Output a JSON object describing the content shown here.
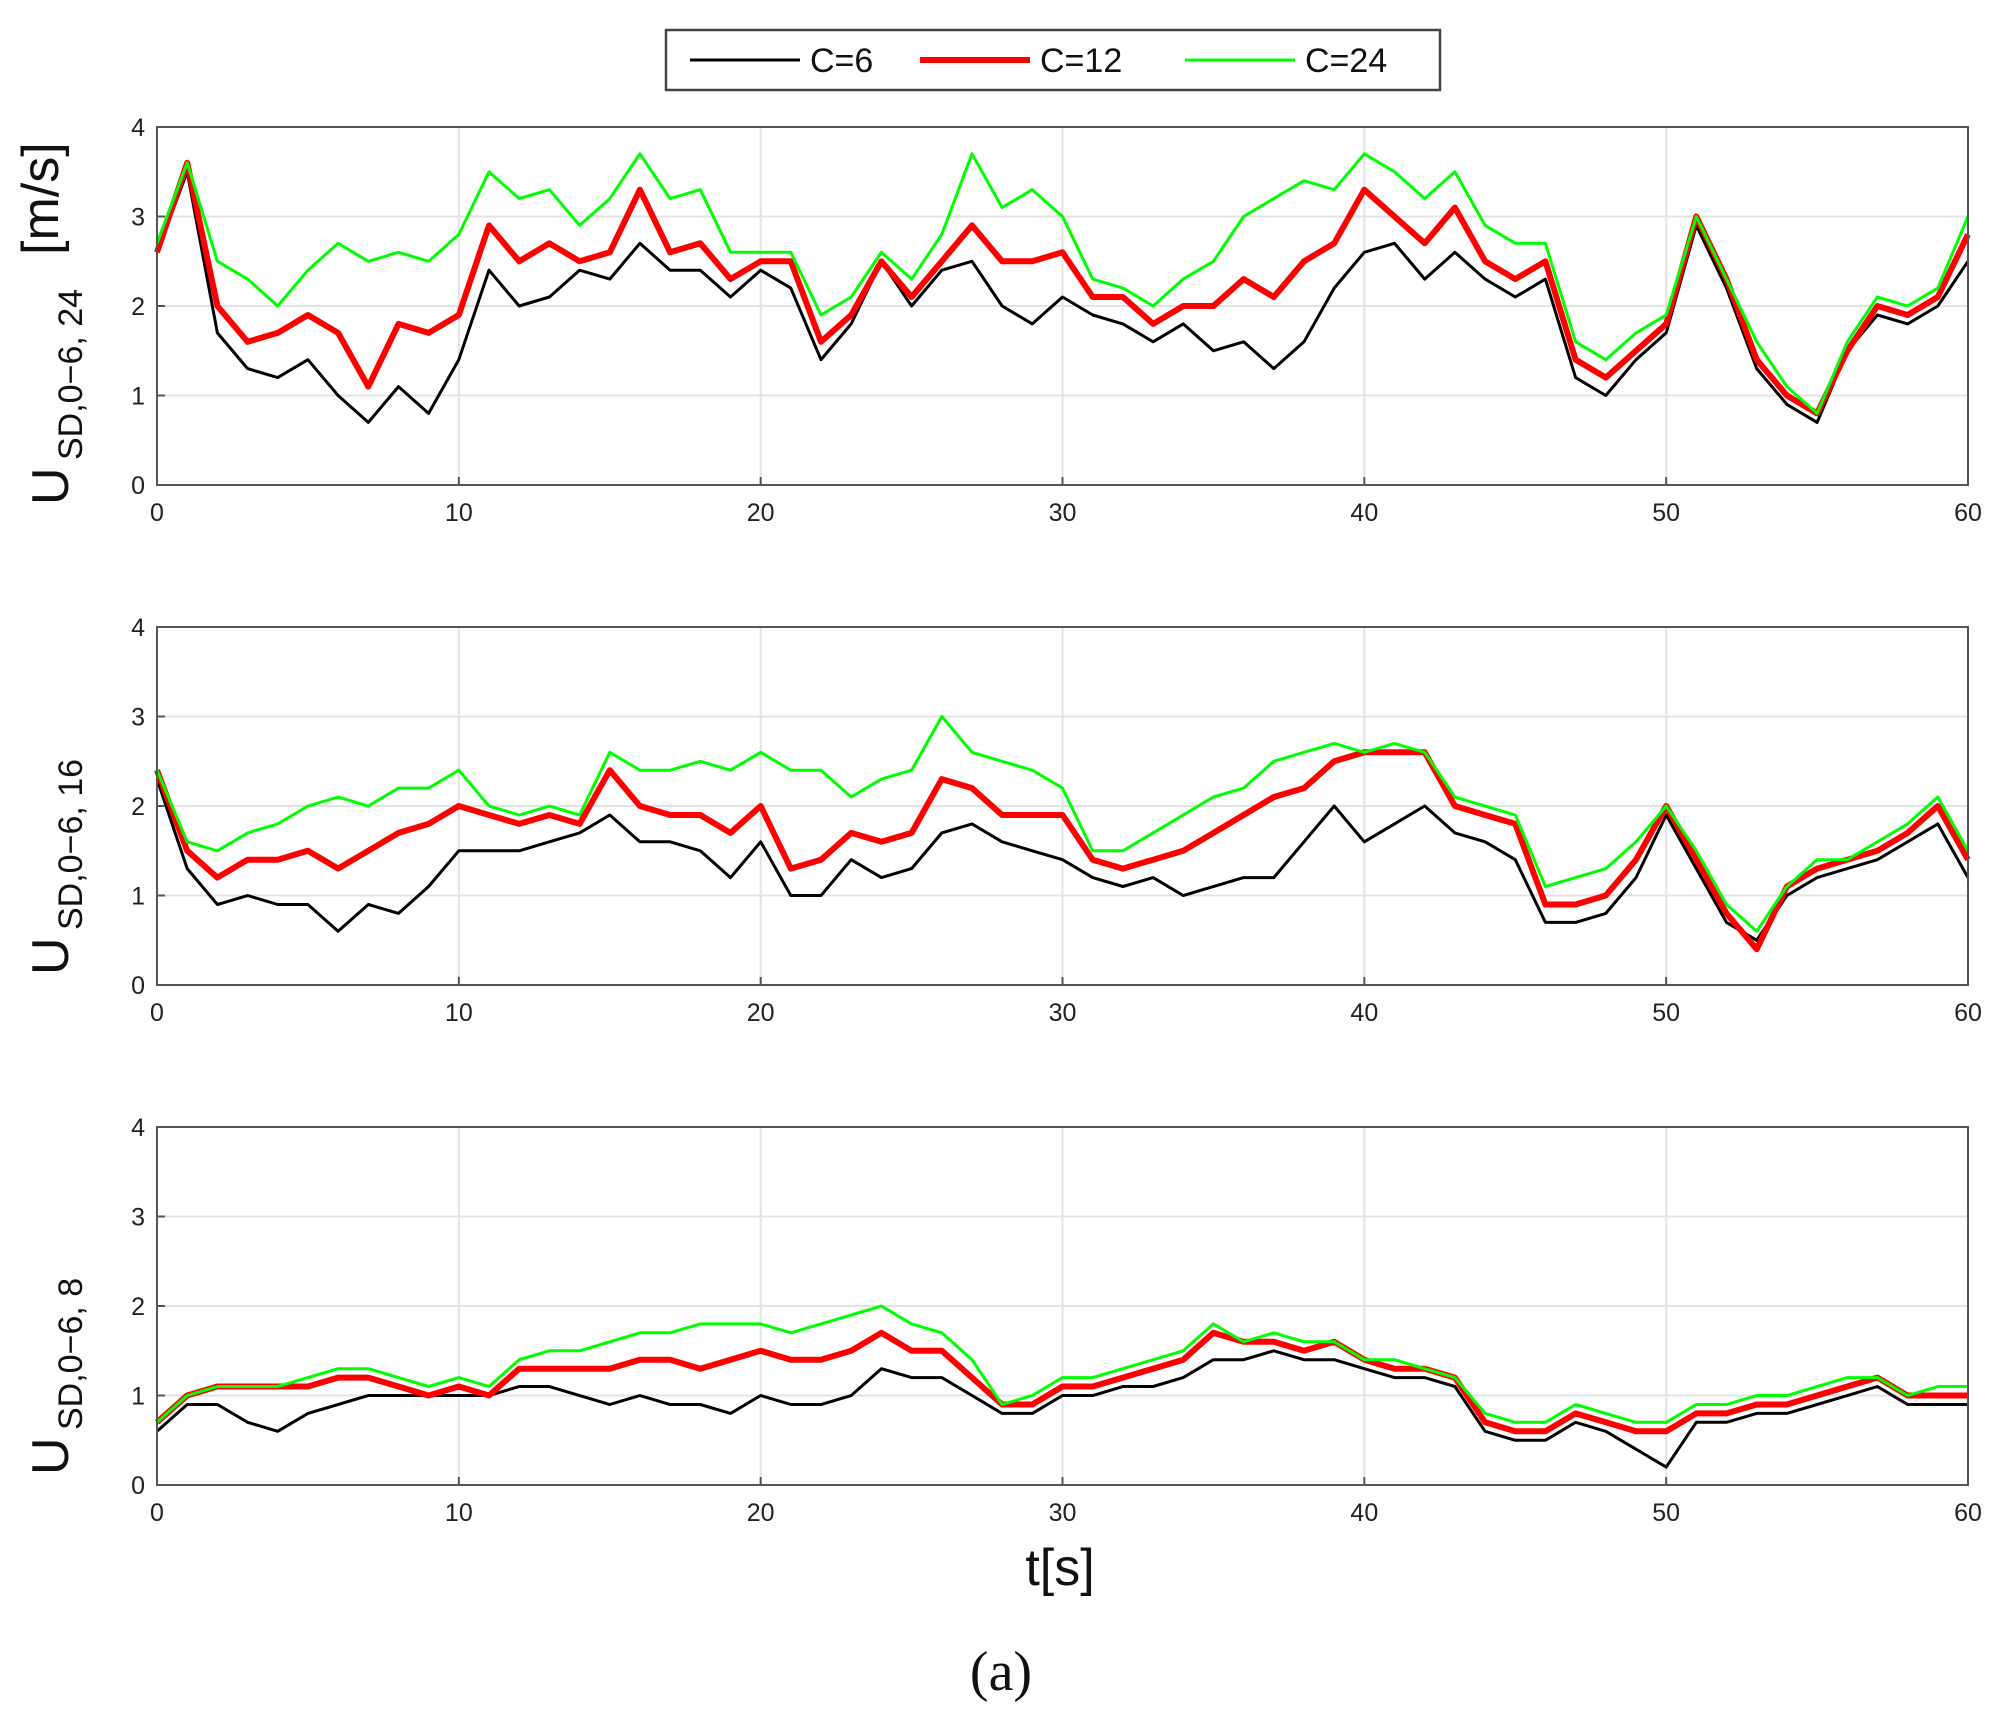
{
  "legend": {
    "entries": [
      {
        "label": "C=6",
        "color": "#000000"
      },
      {
        "label": "C=12",
        "color": "#ff0000"
      },
      {
        "label": "C=24",
        "color": "#00ff00"
      }
    ]
  },
  "caption": "(a)",
  "chart_data": [
    {
      "type": "line",
      "ylabel_main": "U",
      "ylabel_sub": "SD,0−6, 24",
      "yunit": "[m/s]",
      "xlabel": "",
      "xlim": [
        0,
        60
      ],
      "ylim": [
        0,
        4
      ],
      "xticks": [
        "0",
        "10",
        "20",
        "30",
        "40",
        "50",
        "60"
      ],
      "yticks": [
        "0",
        "1",
        "2",
        "3",
        "4"
      ],
      "grid": true,
      "x": [
        0,
        1,
        2,
        3,
        4,
        5,
        6,
        7,
        8,
        9,
        10,
        11,
        12,
        13,
        14,
        15,
        16,
        17,
        18,
        19,
        20,
        21,
        22,
        23,
        24,
        25,
        26,
        27,
        28,
        29,
        30,
        31,
        32,
        33,
        34,
        35,
        36,
        37,
        38,
        39,
        40,
        41,
        42,
        43,
        44,
        45,
        46,
        47,
        48,
        49,
        50,
        51,
        52,
        53,
        54,
        55,
        56,
        57,
        58,
        59,
        60
      ],
      "series": [
        {
          "name": "C=6",
          "values": [
            2.6,
            3.5,
            1.7,
            1.3,
            1.2,
            1.4,
            1.0,
            0.7,
            1.1,
            0.8,
            1.4,
            2.4,
            2.0,
            2.1,
            2.4,
            2.3,
            2.7,
            2.4,
            2.4,
            2.1,
            2.4,
            2.2,
            1.4,
            1.8,
            2.5,
            2.0,
            2.4,
            2.5,
            2.0,
            1.8,
            2.1,
            1.9,
            1.8,
            1.6,
            1.8,
            1.5,
            1.6,
            1.3,
            1.6,
            2.2,
            2.6,
            2.7,
            2.3,
            2.6,
            2.3,
            2.1,
            2.3,
            1.2,
            1.0,
            1.4,
            1.7,
            2.9,
            2.2,
            1.3,
            0.9,
            0.7,
            1.5,
            1.9,
            1.8,
            2.0,
            2.5
          ]
        },
        {
          "name": "C=12",
          "values": [
            2.6,
            3.6,
            2.0,
            1.6,
            1.7,
            1.9,
            1.7,
            1.1,
            1.8,
            1.7,
            1.9,
            2.9,
            2.5,
            2.7,
            2.5,
            2.6,
            3.3,
            2.6,
            2.7,
            2.3,
            2.5,
            2.5,
            1.6,
            1.9,
            2.5,
            2.1,
            2.5,
            2.9,
            2.5,
            2.5,
            2.6,
            2.1,
            2.1,
            1.8,
            2.0,
            2.0,
            2.3,
            2.1,
            2.5,
            2.7,
            3.3,
            3.0,
            2.7,
            3.1,
            2.5,
            2.3,
            2.5,
            1.4,
            1.2,
            1.5,
            1.8,
            3.0,
            2.3,
            1.4,
            1.0,
            0.8,
            1.5,
            2.0,
            1.9,
            2.1,
            2.8
          ]
        },
        {
          "name": "C=24",
          "values": [
            2.7,
            3.6,
            2.5,
            2.3,
            2.0,
            2.4,
            2.7,
            2.5,
            2.6,
            2.5,
            2.8,
            3.5,
            3.2,
            3.3,
            2.9,
            3.2,
            3.7,
            3.2,
            3.3,
            2.6,
            2.6,
            2.6,
            1.9,
            2.1,
            2.6,
            2.3,
            2.8,
            3.7,
            3.1,
            3.3,
            3.0,
            2.3,
            2.2,
            2.0,
            2.3,
            2.5,
            3.0,
            3.2,
            3.4,
            3.3,
            3.7,
            3.5,
            3.2,
            3.5,
            2.9,
            2.7,
            2.7,
            1.6,
            1.4,
            1.7,
            1.9,
            3.0,
            2.3,
            1.6,
            1.1,
            0.8,
            1.6,
            2.1,
            2.0,
            2.2,
            3.0
          ]
        }
      ]
    },
    {
      "type": "line",
      "ylabel_main": "U",
      "ylabel_sub": "SD,0−6, 16",
      "yunit": "",
      "xlabel": "",
      "xlim": [
        0,
        60
      ],
      "ylim": [
        0,
        4
      ],
      "xticks": [
        "0",
        "10",
        "20",
        "30",
        "40",
        "50",
        "60"
      ],
      "yticks": [
        "0",
        "1",
        "2",
        "3",
        "4"
      ],
      "grid": true,
      "x": [
        0,
        1,
        2,
        3,
        4,
        5,
        6,
        7,
        8,
        9,
        10,
        11,
        12,
        13,
        14,
        15,
        16,
        17,
        18,
        19,
        20,
        21,
        22,
        23,
        24,
        25,
        26,
        27,
        28,
        29,
        30,
        31,
        32,
        33,
        34,
        35,
        36,
        37,
        38,
        39,
        40,
        41,
        42,
        43,
        44,
        45,
        46,
        47,
        48,
        49,
        50,
        51,
        52,
        53,
        54,
        55,
        56,
        57,
        58,
        59,
        60
      ],
      "series": [
        {
          "name": "C=6",
          "values": [
            2.3,
            1.3,
            0.9,
            1.0,
            0.9,
            0.9,
            0.6,
            0.9,
            0.8,
            1.1,
            1.5,
            1.5,
            1.5,
            1.6,
            1.7,
            1.9,
            1.6,
            1.6,
            1.5,
            1.2,
            1.6,
            1.0,
            1.0,
            1.4,
            1.2,
            1.3,
            1.7,
            1.8,
            1.6,
            1.5,
            1.4,
            1.2,
            1.1,
            1.2,
            1.0,
            1.1,
            1.2,
            1.2,
            1.6,
            2.0,
            1.6,
            1.8,
            2.0,
            1.7,
            1.6,
            1.4,
            0.7,
            0.7,
            0.8,
            1.2,
            1.9,
            1.3,
            0.7,
            0.5,
            1.0,
            1.2,
            1.3,
            1.4,
            1.6,
            1.8,
            1.2
          ]
        },
        {
          "name": "C=12",
          "values": [
            2.4,
            1.5,
            1.2,
            1.4,
            1.4,
            1.5,
            1.3,
            1.5,
            1.7,
            1.8,
            2.0,
            1.9,
            1.8,
            1.9,
            1.8,
            2.4,
            2.0,
            1.9,
            1.9,
            1.7,
            2.0,
            1.3,
            1.4,
            1.7,
            1.6,
            1.7,
            2.3,
            2.2,
            1.9,
            1.9,
            1.9,
            1.4,
            1.3,
            1.4,
            1.5,
            1.7,
            1.9,
            2.1,
            2.2,
            2.5,
            2.6,
            2.6,
            2.6,
            2.0,
            1.9,
            1.8,
            0.9,
            0.9,
            1.0,
            1.4,
            2.0,
            1.4,
            0.8,
            0.4,
            1.1,
            1.3,
            1.4,
            1.5,
            1.7,
            2.0,
            1.4
          ]
        },
        {
          "name": "C=24",
          "values": [
            2.4,
            1.6,
            1.5,
            1.7,
            1.8,
            2.0,
            2.1,
            2.0,
            2.2,
            2.2,
            2.4,
            2.0,
            1.9,
            2.0,
            1.9,
            2.6,
            2.4,
            2.4,
            2.5,
            2.4,
            2.6,
            2.4,
            2.4,
            2.1,
            2.3,
            2.4,
            3.0,
            2.6,
            2.5,
            2.4,
            2.2,
            1.5,
            1.5,
            1.7,
            1.9,
            2.1,
            2.2,
            2.5,
            2.6,
            2.7,
            2.6,
            2.7,
            2.6,
            2.1,
            2.0,
            1.9,
            1.1,
            1.2,
            1.3,
            1.6,
            2.0,
            1.5,
            0.9,
            0.6,
            1.1,
            1.4,
            1.4,
            1.6,
            1.8,
            2.1,
            1.5
          ]
        }
      ]
    },
    {
      "type": "line",
      "ylabel_main": "U",
      "ylabel_sub": "SD,0−6, 8",
      "yunit": "",
      "xlabel": "t[s]",
      "xlim": [
        0,
        60
      ],
      "ylim": [
        0,
        4
      ],
      "xticks": [
        "0",
        "10",
        "20",
        "30",
        "40",
        "50",
        "60"
      ],
      "yticks": [
        "0",
        "1",
        "2",
        "3",
        "4"
      ],
      "grid": true,
      "x": [
        0,
        1,
        2,
        3,
        4,
        5,
        6,
        7,
        8,
        9,
        10,
        11,
        12,
        13,
        14,
        15,
        16,
        17,
        18,
        19,
        20,
        21,
        22,
        23,
        24,
        25,
        26,
        27,
        28,
        29,
        30,
        31,
        32,
        33,
        34,
        35,
        36,
        37,
        38,
        39,
        40,
        41,
        42,
        43,
        44,
        45,
        46,
        47,
        48,
        49,
        50,
        51,
        52,
        53,
        54,
        55,
        56,
        57,
        58,
        59,
        60
      ],
      "series": [
        {
          "name": "C=6",
          "values": [
            0.6,
            0.9,
            0.9,
            0.7,
            0.6,
            0.8,
            0.9,
            1.0,
            1.0,
            1.0,
            1.0,
            1.0,
            1.1,
            1.1,
            1.0,
            0.9,
            1.0,
            0.9,
            0.9,
            0.8,
            1.0,
            0.9,
            0.9,
            1.0,
            1.3,
            1.2,
            1.2,
            1.0,
            0.8,
            0.8,
            1.0,
            1.0,
            1.1,
            1.1,
            1.2,
            1.4,
            1.4,
            1.5,
            1.4,
            1.4,
            1.3,
            1.2,
            1.2,
            1.1,
            0.6,
            0.5,
            0.5,
            0.7,
            0.6,
            0.4,
            0.2,
            0.7,
            0.7,
            0.8,
            0.8,
            0.9,
            1.0,
            1.1,
            0.9,
            0.9,
            0.9
          ]
        },
        {
          "name": "C=12",
          "values": [
            0.7,
            1.0,
            1.1,
            1.1,
            1.1,
            1.1,
            1.2,
            1.2,
            1.1,
            1.0,
            1.1,
            1.0,
            1.3,
            1.3,
            1.3,
            1.3,
            1.4,
            1.4,
            1.3,
            1.4,
            1.5,
            1.4,
            1.4,
            1.5,
            1.7,
            1.5,
            1.5,
            1.2,
            0.9,
            0.9,
            1.1,
            1.1,
            1.2,
            1.3,
            1.4,
            1.7,
            1.6,
            1.6,
            1.5,
            1.6,
            1.4,
            1.3,
            1.3,
            1.2,
            0.7,
            0.6,
            0.6,
            0.8,
            0.7,
            0.6,
            0.6,
            0.8,
            0.8,
            0.9,
            0.9,
            1.0,
            1.1,
            1.2,
            1.0,
            1.0,
            1.0
          ]
        },
        {
          "name": "C=24",
          "values": [
            0.7,
            1.0,
            1.1,
            1.1,
            1.1,
            1.2,
            1.3,
            1.3,
            1.2,
            1.1,
            1.2,
            1.1,
            1.4,
            1.5,
            1.5,
            1.6,
            1.7,
            1.7,
            1.8,
            1.8,
            1.8,
            1.7,
            1.8,
            1.9,
            2.0,
            1.8,
            1.7,
            1.4,
            0.9,
            1.0,
            1.2,
            1.2,
            1.3,
            1.4,
            1.5,
            1.8,
            1.6,
            1.7,
            1.6,
            1.6,
            1.4,
            1.4,
            1.3,
            1.2,
            0.8,
            0.7,
            0.7,
            0.9,
            0.8,
            0.7,
            0.7,
            0.9,
            0.9,
            1.0,
            1.0,
            1.1,
            1.2,
            1.2,
            1.0,
            1.1,
            1.1
          ]
        }
      ]
    }
  ]
}
